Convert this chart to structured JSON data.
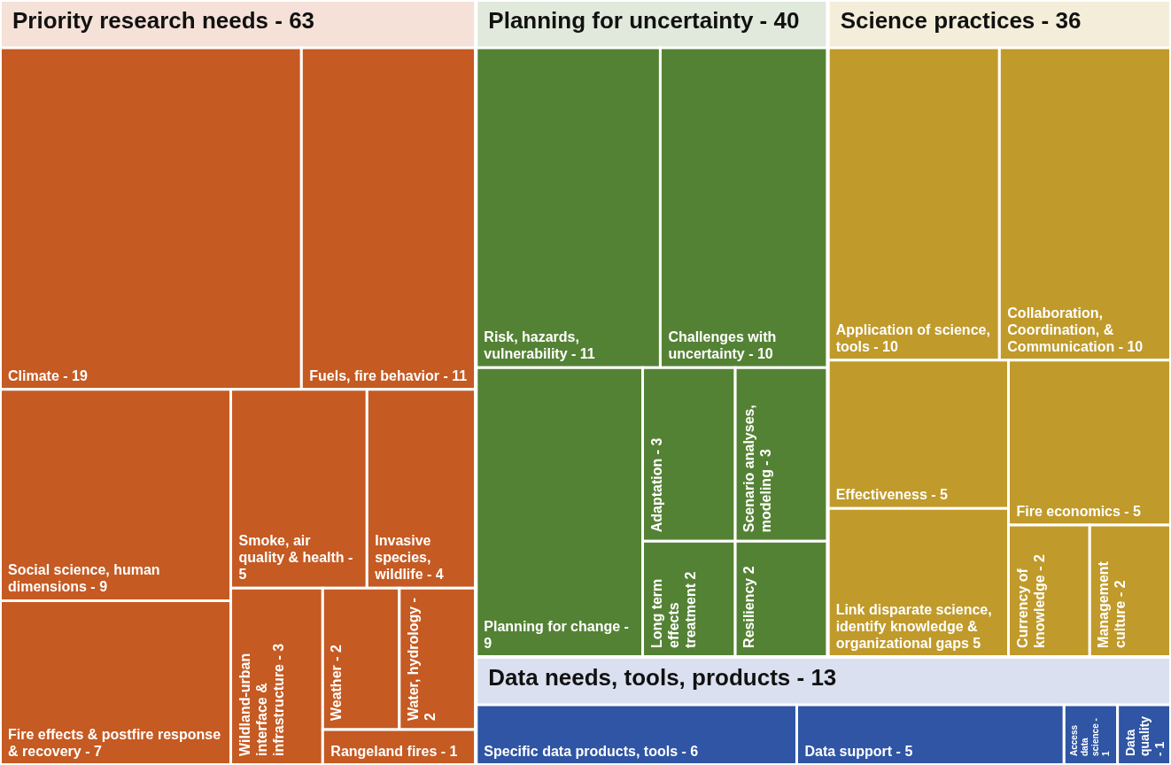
{
  "chart_data": {
    "type": "other",
    "data_labels": true,
    "categories": [
      "Climate -",
      "Fuels, fire behavior -",
      "Social science, human dimensions -",
      "Fire effects & postfire response & recovery -",
      "Smoke, air quality & health -",
      "Invasive species, wildlife -",
      "Wildland-urban interface & infrastructure -",
      "Weather -",
      "Water, hydrology -",
      "Rangeland fires -",
      "Risk, hazards, vulnerability -",
      "Challenges with uncertainty -",
      "Planning for change -",
      "Adaptation -",
      "Scenario analyses, modeling -",
      "Long term effects treatment",
      "Resiliency",
      "Application of science, tools -",
      "Collaboration, Coordination, & Communication -",
      "Effectiveness -",
      "Link disparate science, identify knowledge & organizational gaps",
      "Fire economics -",
      "Currency of knowledge -",
      "Management culture -",
      "Specific data products, tools -",
      "Data support -",
      "Access data science -",
      "Data quality -"
    ],
    "values": [
      19,
      11,
      9,
      7,
      5,
      4,
      3,
      2,
      2,
      1,
      11,
      10,
      9,
      3,
      3,
      2,
      2,
      10,
      10,
      5,
      5,
      5,
      2,
      2,
      6,
      5,
      1,
      1
    ],
    "colors": [
      "#c55a22",
      "#c55a22",
      "#c55a22",
      "#c55a22",
      "#c55a22",
      "#c55a22",
      "#c55a22",
      "#c55a22",
      "#c55a22",
      "#c55a22",
      "#548235",
      "#548235",
      "#548235",
      "#548235",
      "#548235",
      "#548235",
      "#548235",
      "#c09a2a",
      "#c09a2a",
      "#c09a2a",
      "#c09a2a",
      "#c09a2a",
      "#c09a2a",
      "#c09a2a",
      "#2f55a4",
      "#2f55a4",
      "#2f55a4",
      "#2f55a4"
    ],
    "annotations": [
      "Priority research needs - 63",
      "Planning for uncertainty - 40",
      "Science practices - 36",
      "Data needs, tools, products - 13"
    ]
  }
}
